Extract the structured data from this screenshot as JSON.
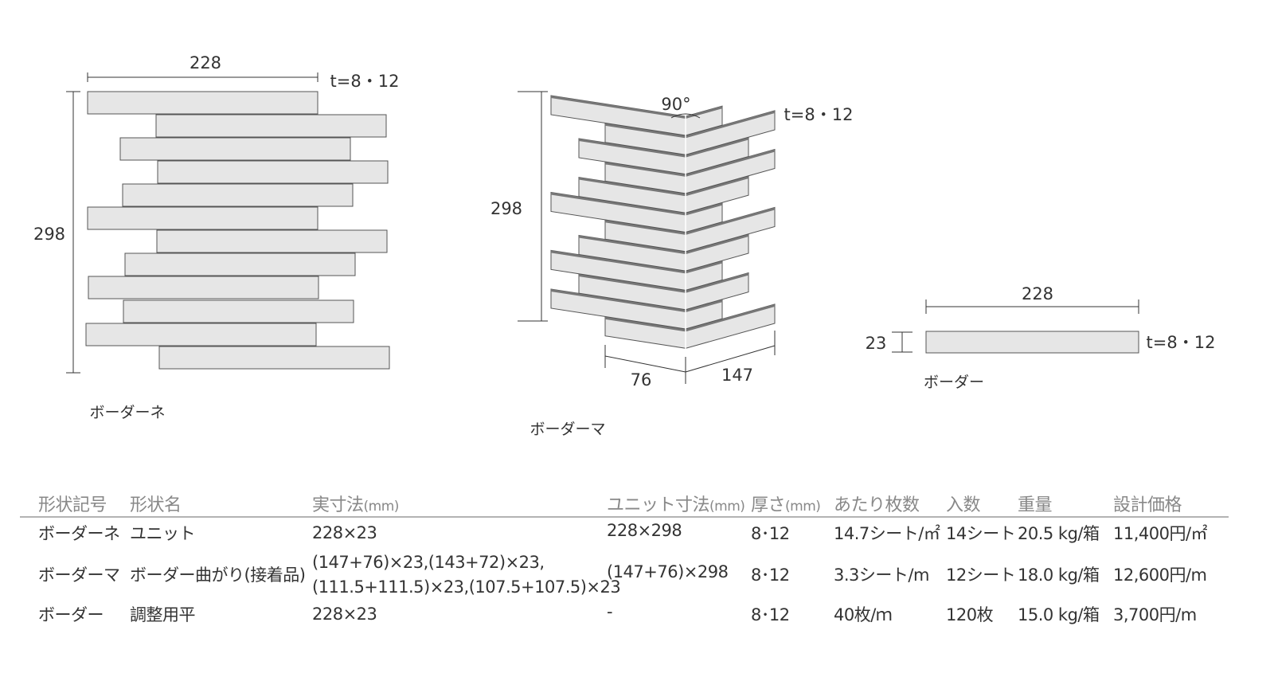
{
  "diagrams": {
    "unit_sheet": {
      "label": "ボーダーネ",
      "width": "228",
      "height": "298",
      "thickness": "t=8・12"
    },
    "corner": {
      "label": "ボーダーマ",
      "angle": "90°",
      "height": "298",
      "thickness": "t=8・12",
      "short_side": "76",
      "long_side": "147"
    },
    "single": {
      "label": "ボーダー",
      "width": "228",
      "height": "23",
      "thickness": "t=8・12"
    }
  },
  "colors": {
    "tile_fill": "#e6e6e6",
    "tile_edge": "#555555",
    "header_text": "#888888",
    "rule": "#b3b3b3"
  },
  "table": {
    "headers": [
      {
        "text": "形状記号",
        "unit": ""
      },
      {
        "text": "形状名",
        "unit": ""
      },
      {
        "text": "実寸法",
        "unit": "(mm)"
      },
      {
        "text": "ユニット寸法",
        "unit": "(mm)"
      },
      {
        "text": "厚さ",
        "unit": "(mm)"
      },
      {
        "text": "あたり枚数",
        "unit": ""
      },
      {
        "text": "入数",
        "unit": ""
      },
      {
        "text": "重量",
        "unit": ""
      },
      {
        "text": "設計価格",
        "unit": ""
      }
    ],
    "rows": [
      {
        "code": "ボーダーネ",
        "name": "ユニット",
        "size": [
          "228×23"
        ],
        "unit_size": "228×298",
        "thickness": "8･12",
        "per_area": "14.7シート/㎡",
        "qty": "14シート",
        "weight": "20.5 kg/箱",
        "price": "11,400円/㎡"
      },
      {
        "code": "ボーダーマ",
        "name": "ボーダー曲がり(接着品)",
        "size": [
          "(147+76)×23,(143+72)×23,",
          "(111.5+111.5)×23,(107.5+107.5)×23"
        ],
        "unit_size": "(147+76)×298",
        "thickness": "8･12",
        "per_area": "3.3シート/m",
        "qty": "12シート",
        "weight": "18.0 kg/箱",
        "price": "12,600円/m"
      },
      {
        "code": "ボーダー",
        "name": "調整用平",
        "size": [
          "228×23"
        ],
        "unit_size": "-",
        "thickness": "8･12",
        "per_area": "40枚/ｍ",
        "qty": "120枚",
        "weight": "15.0 kg/箱",
        "price": "3,700円/m"
      }
    ]
  }
}
